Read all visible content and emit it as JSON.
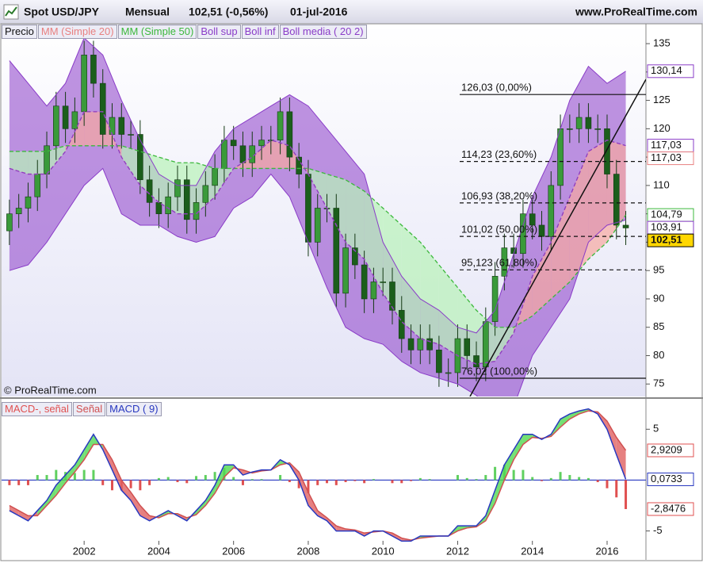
{
  "chart_data": [
    {
      "type": "candlestick",
      "title": "Spot USD/JPY",
      "period": "Mensual",
      "last": "102,51 (-0,56%)",
      "date": "01-jul-2016",
      "source": "www.ProRealTime.com",
      "watermark": "© ProRealTime.com",
      "name": "Precio",
      "up_color": "#3a9a3a",
      "down_color": "#1b5e1b",
      "x": [
        2000,
        2000.25,
        2000.5,
        2000.75,
        2001,
        2001.25,
        2001.5,
        2001.75,
        2002,
        2002.25,
        2002.5,
        2002.75,
        2003,
        2003.25,
        2003.5,
        2003.75,
        2004,
        2004.25,
        2004.5,
        2004.75,
        2005,
        2005.25,
        2005.5,
        2005.75,
        2006,
        2006.25,
        2006.5,
        2006.75,
        2007,
        2007.25,
        2007.5,
        2007.75,
        2008,
        2008.25,
        2008.5,
        2008.75,
        2009,
        2009.25,
        2009.5,
        2009.75,
        2010,
        2010.25,
        2010.5,
        2010.75,
        2011,
        2011.25,
        2011.5,
        2011.75,
        2012,
        2012.25,
        2012.5,
        2012.75,
        2013,
        2013.25,
        2013.5,
        2013.75,
        2014,
        2014.25,
        2014.5,
        2014.75,
        2015,
        2015.25,
        2015.5,
        2015.75,
        2016,
        2016.25,
        2016.5
      ],
      "open": [
        102,
        105,
        106,
        108,
        112,
        117,
        124,
        120,
        123,
        133,
        128,
        119,
        122,
        119,
        119,
        111,
        107,
        105,
        108,
        111,
        104,
        107,
        110,
        113,
        118,
        117,
        114,
        117,
        118,
        118,
        123,
        115,
        112,
        100,
        106,
        106,
        91,
        99,
        96,
        90,
        93,
        93,
        88,
        83,
        81,
        83,
        81,
        77,
        77,
        83,
        80,
        78,
        86,
        94,
        99,
        98,
        105,
        103,
        101,
        110,
        120,
        120,
        122,
        120,
        120,
        112,
        103
      ],
      "high": [
        107.5,
        108.5,
        110.5,
        114.5,
        119.5,
        126.5,
        126.5,
        125.5,
        135.5,
        135.5,
        130.5,
        124.5,
        124.5,
        121.5,
        121.5,
        113.5,
        109.5,
        110.5,
        113.5,
        113.5,
        109.5,
        112.5,
        115.5,
        120.5,
        120.5,
        119.5,
        119.5,
        120.5,
        120.5,
        125.5,
        125.5,
        117.5,
        114.5,
        108.5,
        108.5,
        108.5,
        101.5,
        101.5,
        98.5,
        95.5,
        95.5,
        95.5,
        90.5,
        85.5,
        85.5,
        85.5,
        83.5,
        79.5,
        85.5,
        85.5,
        82.5,
        88.5,
        96.5,
        101.5,
        101.5,
        107.5,
        107.5,
        105.5,
        112.5,
        122.5,
        122.5,
        124.5,
        124.5,
        122.5,
        122.5,
        114.5,
        105.5
      ],
      "low": [
        99.5,
        102.5,
        103.5,
        105.5,
        109.5,
        114.5,
        117.5,
        117.5,
        120.5,
        125.5,
        116.5,
        116.5,
        116.5,
        116.5,
        108.5,
        104.5,
        102.5,
        102.5,
        105.5,
        101.5,
        101.5,
        104.5,
        107.5,
        110.5,
        114.5,
        111.5,
        111.5,
        114.5,
        115.5,
        115.5,
        112.5,
        109.5,
        97.5,
        97.5,
        103.5,
        88.5,
        88.5,
        93.5,
        87.5,
        87.5,
        90.5,
        85.5,
        80.5,
        78.5,
        78.5,
        78.5,
        74.5,
        74.5,
        74.5,
        77.5,
        75.5,
        75.5,
        83.5,
        91.5,
        95.5,
        95.5,
        100.5,
        98.5,
        98.5,
        107.5,
        117.5,
        117.5,
        117.5,
        117.5,
        109.5,
        100.5,
        99.5
      ],
      "close": [
        105,
        106,
        108,
        112,
        117,
        124,
        120,
        123,
        133,
        128,
        119,
        122,
        119,
        119,
        111,
        107,
        105,
        108,
        111,
        104,
        107,
        110,
        113,
        118,
        117,
        114,
        117,
        118,
        118,
        123,
        115,
        112,
        100,
        106,
        106,
        91,
        99,
        96,
        90,
        93,
        93,
        88,
        83,
        81,
        83,
        81,
        77,
        77,
        83,
        80,
        78,
        86,
        94,
        99,
        98,
        105,
        103,
        101,
        110,
        120,
        120,
        122,
        120,
        120,
        112,
        103,
        102.51
      ],
      "indicators": {
        "x": [
          2000,
          2000.5,
          2001,
          2001.5,
          2002,
          2002.5,
          2003,
          2003.5,
          2004,
          2004.5,
          2005,
          2005.5,
          2006,
          2006.5,
          2007,
          2007.5,
          2008,
          2008.5,
          2009,
          2009.5,
          2010,
          2010.5,
          2011,
          2011.5,
          2012,
          2012.5,
          2013,
          2013.5,
          2014,
          2014.5,
          2015,
          2015.5,
          2016,
          2016.5
        ],
        "series": [
          {
            "name": "MM (Simple 20)",
            "color": "#e88080",
            "dashed": true,
            "values": [
              113,
              112,
              112,
              116,
              123,
              123,
              115,
              110,
              107,
              105,
              105,
              108,
              113,
              115,
              118,
              117,
              112,
              106,
              100,
              97,
              91,
              86,
              83,
              82,
              80,
              78.5,
              79,
              84,
              94,
              100,
              108,
              116,
              118,
              117.03
            ]
          },
          {
            "name": "MM (Simple 50)",
            "color": "#3cb83c",
            "dashed": true,
            "values": [
              116,
              116,
              116,
              117,
              117,
              117,
              117,
              116,
              115,
              114,
              114,
              113,
              113,
              113,
              113,
              113,
              113,
              112,
              111,
              109,
              106,
              103,
              100,
              96,
              92,
              88,
              85,
              85,
              87,
              90,
              93,
              97,
              100,
              104.79
            ]
          },
          {
            "name": "Boll sup",
            "color": "#8a3cc8",
            "dashed": false,
            "values": [
              132,
              128,
              124,
              128,
              136,
              133,
              125,
              118,
              112,
              110,
              110,
              116,
              120,
              122,
              124,
              126,
              124,
              120,
              116,
              112,
              100,
              94,
              90,
              88,
              85,
              84,
              88,
              98,
              108,
              115,
              125,
              131,
              128,
              130.14
            ]
          },
          {
            "name": "Boll inf",
            "color": "#8a3cc8",
            "dashed": false,
            "values": [
              95,
              96,
              100,
              105,
              110,
              113,
              105,
              103,
              103,
              101,
              100,
              101,
              106,
              108,
              112,
              108,
              100,
              92,
              85,
              83,
              82,
              79,
              77,
              76,
              75,
              73,
              70,
              71,
              80,
              85,
              90,
              100,
              103,
              103.91
            ]
          },
          {
            "name": "Boll media ( 20 2)",
            "color": "#8a3cc8",
            "dashed": true,
            "values": [
              113,
              112,
              112,
              116,
              123,
              123,
              115,
              110,
              107,
              105,
              105,
              108,
              113,
              115,
              118,
              117,
              112,
              106,
              100,
              97,
              91,
              86,
              83,
              82,
              80,
              78.5,
              79,
              84,
              94,
              100,
              108,
              116,
              118,
              117.03
            ]
          }
        ]
      },
      "fibonacci": [
        {
          "value": 126.03,
          "label": "126,03 (0,00%)",
          "dashed": false
        },
        {
          "value": 114.23,
          "label": "114,23 (23,60%)",
          "dashed": true
        },
        {
          "value": 106.93,
          "label": "106,93 (38,20%)",
          "dashed": true
        },
        {
          "value": 101.02,
          "label": "101,02 (50,00%)",
          "dashed": true
        },
        {
          "value": 95.123,
          "label": "95,123 (61,80%)",
          "dashed": true
        },
        {
          "value": 76.02,
          "label": "76,02 (100,00%)",
          "dashed": false
        }
      ],
      "trendline": {
        "x": [
          2012.33,
          2017.04
        ],
        "y": [
          72.8,
          128.7
        ]
      },
      "last_labels": [
        {
          "value": 130.14,
          "label": "130,14",
          "color": "#8a3cc8",
          "background": "#ffffff"
        },
        {
          "value": 117.03,
          "label": "117,03",
          "color": "#8a3cc8",
          "background": "#ffffff"
        },
        {
          "value": 117.03,
          "label": "117,03",
          "color": "#e88080",
          "background": "#ffffff"
        },
        {
          "value": 104.79,
          "label": "104,79",
          "color": "#3cb83c",
          "background": "#ffffff"
        },
        {
          "value": 103.91,
          "label": "103,91",
          "color": "#8a3cc8",
          "background": "#ffffff"
        },
        {
          "value": 102.51,
          "label": "102,51",
          "color": "#000000",
          "background": "#ffd700"
        }
      ],
      "xlim": [
        1999.79,
        2017.04
      ],
      "ylim": [
        72.8,
        138.5
      ],
      "yticks": [
        75,
        80,
        85,
        90,
        95,
        100,
        105,
        110,
        115,
        120,
        125,
        130,
        135
      ]
    },
    {
      "type": "macd",
      "x": [
        2000,
        2000.25,
        2000.5,
        2000.75,
        2001,
        2001.25,
        2001.5,
        2001.75,
        2002,
        2002.25,
        2002.5,
        2002.75,
        2003,
        2003.25,
        2003.5,
        2003.75,
        2004,
        2004.25,
        2004.5,
        2004.75,
        2005,
        2005.25,
        2005.5,
        2005.75,
        2006,
        2006.25,
        2006.5,
        2006.75,
        2007,
        2007.25,
        2007.5,
        2007.75,
        2008,
        2008.25,
        2008.5,
        2008.75,
        2009,
        2009.25,
        2009.5,
        2009.75,
        2010,
        2010.25,
        2010.5,
        2010.75,
        2011,
        2011.25,
        2011.5,
        2011.75,
        2012,
        2012.25,
        2012.5,
        2012.75,
        2013,
        2013.25,
        2013.5,
        2013.75,
        2014,
        2014.25,
        2014.5,
        2014.75,
        2015,
        2015.25,
        2015.5,
        2015.75,
        2016,
        2016.25,
        2016.5
      ],
      "series": [
        {
          "name": "MACD-, señal",
          "color": "#e05050",
          "color_up": "#60d060",
          "values": [
            -0.5,
            -0.5,
            -0.5,
            0.5,
            0.5,
            1,
            0.8,
            0.7,
            1,
            1,
            -0.5,
            -1,
            -1,
            -0.8,
            -1,
            -0.5,
            0.2,
            0.3,
            -0.2,
            -0.3,
            0.4,
            0.5,
            0.8,
            1.2,
            0.3,
            -0.5,
            0.1,
            0.1,
            0,
            0.5,
            -0.2,
            -0.8,
            -1.3,
            -0.5,
            -0.3,
            -0.5,
            -0.2,
            -0.1,
            -0.3,
            0.1,
            0,
            -0.3,
            -0.3,
            -0.1,
            0.2,
            0.1,
            0,
            0,
            0.5,
            0.2,
            0.1,
            0.5,
            1.3,
            1.5,
            1,
            1,
            0.3,
            -0.1,
            0.2,
            0.8,
            0.5,
            0.3,
            0.2,
            -0.2,
            -0.8,
            -1.7,
            -2.8476
          ]
        },
        {
          "name": "Señal",
          "color": "#d05050",
          "values": [
            -2.5,
            -3,
            -3.5,
            -3.5,
            -2.5,
            -1.5,
            -0.3,
            0.8,
            2,
            3.5,
            3.5,
            2,
            0,
            -1.2,
            -2.5,
            -3.5,
            -3.7,
            -3.3,
            -3.3,
            -3.7,
            -3.4,
            -2.5,
            -1.3,
            0.3,
            1.2,
            1,
            0.7,
            0.9,
            1,
            1.5,
            1.7,
            0.8,
            -1.2,
            -3,
            -3.7,
            -4.5,
            -4.8,
            -4.9,
            -5.2,
            -5.1,
            -5,
            -5.2,
            -5.7,
            -5.9,
            -5.7,
            -5.6,
            -5.5,
            -5.5,
            -5,
            -4.7,
            -4.6,
            -4,
            -2.3,
            0,
            2,
            3.5,
            4.2,
            4.1,
            4.3,
            5.2,
            6,
            6.5,
            6.8,
            6.7,
            5.8,
            4.2,
            2.9209
          ]
        },
        {
          "name": "MACD ( 9)",
          "color": "#2838c0",
          "values": [
            -3,
            -3.5,
            -4,
            -3,
            -2,
            -0.5,
            0.5,
            1.5,
            3,
            4.5,
            3,
            1,
            -1,
            -2,
            -3.5,
            -4,
            -3.5,
            -3,
            -3.5,
            -4,
            -3,
            -2,
            -0.5,
            1.5,
            1.5,
            0.5,
            0.8,
            1,
            1,
            2,
            1.5,
            0,
            -2.5,
            -3.5,
            -4,
            -5,
            -5,
            -5,
            -5.5,
            -5,
            -5,
            -5.5,
            -6,
            -6,
            -5.5,
            -5.5,
            -5.5,
            -5.5,
            -4.5,
            -4.5,
            -4.5,
            -3.5,
            -1,
            1.5,
            3,
            4.5,
            4.5,
            4,
            4.5,
            6,
            6.5,
            6.8,
            7,
            6.5,
            5,
            2.5,
            0.0733
          ]
        }
      ],
      "last_labels": [
        {
          "value": 2.9209,
          "label": "2,9209",
          "color": "#e05050"
        },
        {
          "value": 0.0733,
          "label": "0,0733",
          "color": "#2838c0"
        },
        {
          "value": -2.8476,
          "label": "-2,8476",
          "color": "#e05050"
        }
      ],
      "xlim": [
        1999.79,
        2017.04
      ],
      "ylim": [
        -7.76,
        7.83
      ],
      "yticks": [
        -5,
        5
      ],
      "xticks": [
        2002,
        2004,
        2006,
        2008,
        2010,
        2012,
        2014,
        2016
      ]
    }
  ]
}
